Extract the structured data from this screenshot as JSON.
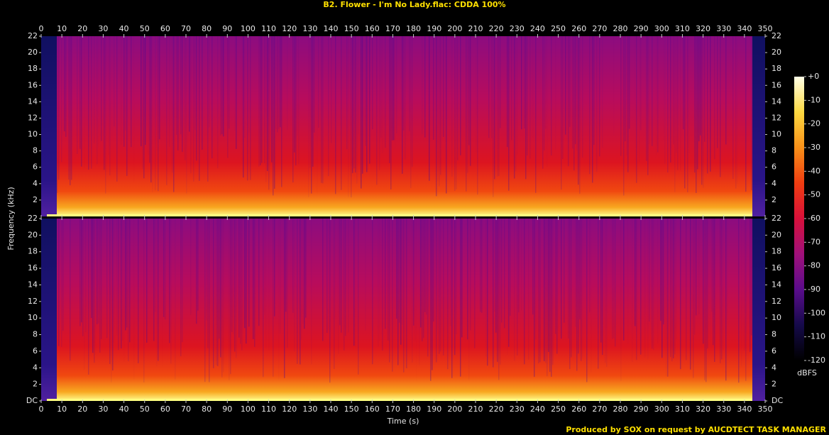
{
  "chart_data": {
    "type": "spectrogram",
    "title": "B2. Flower - I'm No Lady.flac: CDDA 100%",
    "xlabel": "Time (s)",
    "ylabel": "Frequency (kHz)",
    "footer": "Produced by SOX on request by AUCDTECT TASK MANAGER",
    "xlim": [
      0,
      350
    ],
    "xticks": [
      0,
      10,
      20,
      30,
      40,
      50,
      60,
      70,
      80,
      90,
      100,
      110,
      120,
      130,
      140,
      150,
      160,
      170,
      180,
      190,
      200,
      210,
      220,
      230,
      240,
      250,
      260,
      270,
      280,
      290,
      300,
      310,
      320,
      330,
      340,
      350
    ],
    "channels": [
      {
        "ylim": [
          0,
          22
        ],
        "yticks": [
          2,
          4,
          6,
          8,
          10,
          12,
          14,
          16,
          18,
          20,
          22
        ]
      },
      {
        "ylim": [
          0,
          22
        ],
        "yticks": [
          {
            "value": 0,
            "label": "DC"
          },
          2,
          4,
          6,
          8,
          10,
          12,
          14,
          16,
          18,
          20,
          22
        ]
      }
    ],
    "colorbar": {
      "label": "dBFS",
      "lim": [
        -120,
        0
      ],
      "ticks": [
        {
          "value": 0,
          "label": "+0"
        },
        -10,
        -20,
        -30,
        -40,
        -50,
        -60,
        -70,
        -80,
        -90,
        -100,
        -110,
        -120
      ],
      "colormap": [
        "#000000",
        "#150a4a",
        "#5a0c8c",
        "#a0107a",
        "#d8103a",
        "#f03c10",
        "#f89018",
        "#fcd840",
        "#ffffe8"
      ]
    }
  }
}
